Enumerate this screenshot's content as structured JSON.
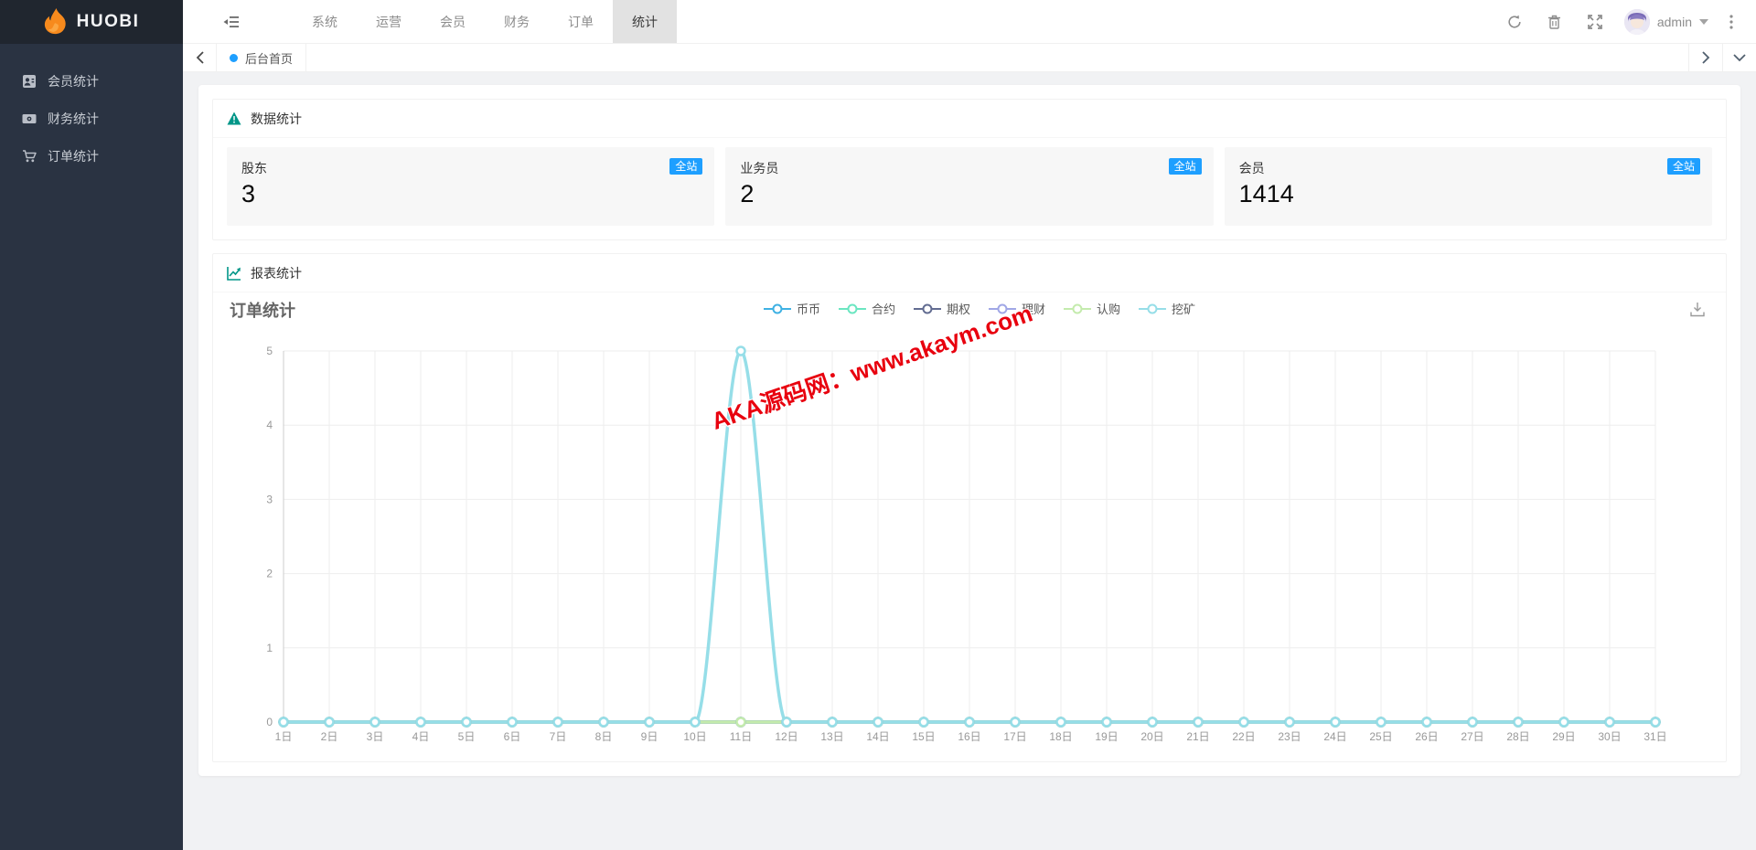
{
  "brand": {
    "name": "HUOBI"
  },
  "colors": {
    "badge_blue": "#1E9FFF",
    "teal_icon": "#009688",
    "sidebar_bg": "#2a3342",
    "watermark_red": "#e8000e"
  },
  "icons": {
    "flame-logo-icon": "orange flame",
    "menu-toggle-icon": "shrink list lines",
    "refresh-icon": "circular arrows",
    "trash-icon": "trash bin",
    "fullscreen-icon": "expand arrows",
    "caret-down-icon": "▾",
    "more-vertical-icon": "⋮",
    "back-icon": "‹",
    "forward-icon": "›",
    "collapse-icon": "⌄",
    "warning-triangle-icon": "▲!",
    "report-chart-icon": "rising line chart",
    "download-icon": "⤓",
    "user-icon": "member card",
    "wallet-icon": "banknote",
    "cart-icon": "shopping cart",
    "legend-marker-icon": "line with hollow circle"
  },
  "sidebar": {
    "items": [
      {
        "label": "会员统计"
      },
      {
        "label": "财务统计"
      },
      {
        "label": "订单统计"
      }
    ]
  },
  "topnav": {
    "tabs": [
      {
        "label": "系统"
      },
      {
        "label": "运营"
      },
      {
        "label": "会员"
      },
      {
        "label": "财务"
      },
      {
        "label": "订单"
      },
      {
        "label": "统计",
        "active": true
      }
    ],
    "user": {
      "name": "admin"
    }
  },
  "tabsbar": {
    "active_tab": "后台首页"
  },
  "stats_panel": {
    "title": "数据统计",
    "cards": [
      {
        "label": "股东",
        "value": "3",
        "badge": "全站"
      },
      {
        "label": "业务员",
        "value": "2",
        "badge": "全站"
      },
      {
        "label": "会员",
        "value": "1414",
        "badge": "全站"
      }
    ]
  },
  "report_panel": {
    "title": "报表统计"
  },
  "watermark": {
    "text": "AKA源码网：www.akaym.com"
  },
  "chart_data": {
    "type": "line",
    "title": "订单统计",
    "xlabel": "",
    "ylabel": "",
    "ylim": [
      0,
      5
    ],
    "yticks": [
      0,
      1,
      2,
      3,
      4,
      5
    ],
    "grid": true,
    "smooth": true,
    "legend_position": "top-center",
    "x": [
      "1日",
      "2日",
      "3日",
      "4日",
      "5日",
      "6日",
      "7日",
      "8日",
      "9日",
      "10日",
      "11日",
      "12日",
      "13日",
      "14日",
      "15日",
      "16日",
      "17日",
      "18日",
      "19日",
      "20日",
      "21日",
      "22日",
      "23日",
      "24日",
      "25日",
      "26日",
      "27日",
      "28日",
      "29日",
      "30日",
      "31日"
    ],
    "series": [
      {
        "name": "币币",
        "color": "#3fb1e3",
        "values": [
          0,
          0,
          0,
          0,
          0,
          0,
          0,
          0,
          0,
          0,
          0,
          0,
          0,
          0,
          0,
          0,
          0,
          0,
          0,
          0,
          0,
          0,
          0,
          0,
          0,
          0,
          0,
          0,
          0,
          0,
          0
        ]
      },
      {
        "name": "合约",
        "color": "#6be6c1",
        "values": [
          0,
          0,
          0,
          0,
          0,
          0,
          0,
          0,
          0,
          0,
          0,
          0,
          0,
          0,
          0,
          0,
          0,
          0,
          0,
          0,
          0,
          0,
          0,
          0,
          0,
          0,
          0,
          0,
          0,
          0,
          0
        ]
      },
      {
        "name": "期权",
        "color": "#626c91",
        "values": [
          0,
          0,
          0,
          0,
          0,
          0,
          0,
          0,
          0,
          0,
          0,
          0,
          0,
          0,
          0,
          0,
          0,
          0,
          0,
          0,
          0,
          0,
          0,
          0,
          0,
          0,
          0,
          0,
          0,
          0,
          0
        ]
      },
      {
        "name": "理财",
        "color": "#a0a7e6",
        "values": [
          0,
          0,
          0,
          0,
          0,
          0,
          0,
          0,
          0,
          0,
          0,
          0,
          0,
          0,
          0,
          0,
          0,
          0,
          0,
          0,
          0,
          0,
          0,
          0,
          0,
          0,
          0,
          0,
          0,
          0,
          0
        ]
      },
      {
        "name": "认购",
        "color": "#c4ebad",
        "values": [
          0,
          0,
          0,
          0,
          0,
          0,
          0,
          0,
          0,
          0,
          0,
          0,
          0,
          0,
          0,
          0,
          0,
          0,
          0,
          0,
          0,
          0,
          0,
          0,
          0,
          0,
          0,
          0,
          0,
          0,
          0
        ]
      },
      {
        "name": "挖矿",
        "color": "#96dee8",
        "values": [
          0,
          0,
          0,
          0,
          0,
          0,
          0,
          0,
          0,
          0,
          5,
          0,
          0,
          0,
          0,
          0,
          0,
          0,
          0,
          0,
          0,
          0,
          0,
          0,
          0,
          0,
          0,
          0,
          0,
          0,
          0
        ]
      }
    ]
  }
}
